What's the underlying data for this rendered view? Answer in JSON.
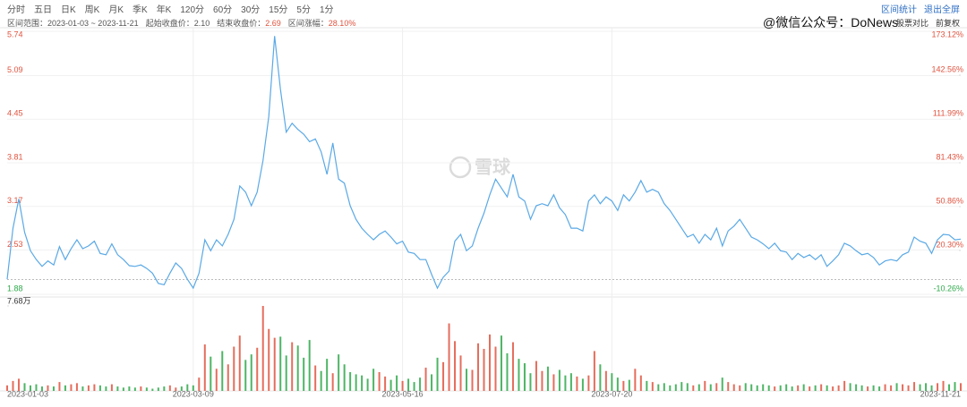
{
  "toolbar": {
    "tabs": [
      "分时",
      "五日",
      "日K",
      "周K",
      "月K",
      "季K",
      "年K",
      "120分",
      "60分",
      "30分",
      "15分",
      "5分",
      "1分"
    ],
    "actions": [
      "区间统计",
      "退出全屏"
    ]
  },
  "summary": {
    "range_label": "区间范围：",
    "range": "2023-01-03 ~ 2023-11-21",
    "start_label": "起始收盘价：",
    "start_close": "2.10",
    "end_label": "结束收盘价：",
    "end_close": "2.69",
    "change_label": "区间涨幅：",
    "change": "28.10%",
    "options": [
      "股票对比",
      "前复权"
    ]
  },
  "watermark": "@微信公众号：DoNews",
  "logo": "雪球",
  "chart_data": [
    {
      "type": "line",
      "color": "#5aa9e6",
      "up_color": "#e0533f",
      "down_color": "#2ea84a",
      "categories": [
        "2023-01-03",
        null,
        null,
        null,
        null,
        null,
        null,
        null,
        null,
        null,
        null,
        null,
        null,
        null,
        null,
        null,
        null,
        null,
        null,
        null,
        null,
        null,
        null,
        null,
        null,
        null,
        null,
        null,
        null,
        null,
        null,
        null,
        "2023-03-09",
        null,
        null,
        null,
        null,
        null,
        null,
        null,
        null,
        null,
        null,
        null,
        null,
        null,
        null,
        null,
        null,
        null,
        null,
        null,
        null,
        null,
        null,
        null,
        null,
        null,
        null,
        null,
        null,
        null,
        null,
        null,
        null,
        null,
        null,
        null,
        "2023-05-16",
        null,
        null,
        null,
        null,
        null,
        null,
        null,
        null,
        null,
        null,
        null,
        null,
        null,
        null,
        null,
        null,
        null,
        null,
        null,
        null,
        null,
        null,
        null,
        null,
        null,
        null,
        null,
        null,
        null,
        null,
        null,
        null,
        null,
        null,
        null,
        "2023-07-20",
        null,
        null,
        null,
        null,
        null,
        null,
        null,
        null,
        null,
        null,
        null,
        null,
        null,
        null,
        null,
        null,
        null,
        null,
        null,
        null,
        null,
        null,
        null,
        null,
        null,
        null,
        null,
        null,
        null,
        null,
        null,
        null,
        null,
        null,
        null,
        null,
        null,
        null,
        null,
        null,
        null,
        null,
        null,
        null,
        null,
        null,
        null,
        null,
        null,
        null,
        null,
        null,
        null,
        null,
        null,
        null,
        null,
        null,
        null,
        "2023-11-21"
      ],
      "values": [
        2.1,
        2.85,
        3.28,
        2.79,
        2.52,
        2.39,
        2.29,
        2.37,
        2.31,
        2.58,
        2.39,
        2.55,
        2.68,
        2.55,
        2.59,
        2.66,
        2.48,
        2.46,
        2.62,
        2.46,
        2.39,
        2.3,
        2.29,
        2.31,
        2.26,
        2.19,
        2.04,
        2.02,
        2.19,
        2.34,
        2.26,
        2.1,
        1.97,
        2.19,
        2.68,
        2.52,
        2.68,
        2.59,
        2.76,
        2.98,
        3.47,
        3.38,
        3.18,
        3.38,
        3.84,
        4.49,
        5.67,
        4.89,
        4.26,
        4.39,
        4.3,
        4.23,
        4.12,
        4.16,
        3.97,
        3.64,
        4.1,
        3.57,
        3.51,
        3.18,
        2.98,
        2.85,
        2.76,
        2.68,
        2.76,
        2.81,
        2.72,
        2.62,
        2.66,
        2.5,
        2.48,
        2.39,
        2.39,
        2.17,
        1.97,
        2.13,
        2.22,
        2.66,
        2.76,
        2.52,
        2.59,
        2.85,
        3.07,
        3.34,
        3.57,
        3.44,
        3.31,
        3.64,
        3.31,
        3.25,
        2.98,
        3.18,
        3.21,
        3.18,
        3.34,
        3.15,
        3.05,
        2.85,
        2.85,
        2.81,
        3.25,
        3.34,
        3.21,
        3.31,
        3.25,
        3.11,
        3.34,
        3.25,
        3.38,
        3.55,
        3.38,
        3.42,
        3.38,
        3.21,
        3.11,
        2.98,
        2.85,
        2.72,
        2.76,
        2.63,
        2.76,
        2.68,
        2.85,
        2.59,
        2.81,
        2.88,
        2.98,
        2.85,
        2.72,
        2.68,
        2.62,
        2.55,
        2.63,
        2.52,
        2.5,
        2.39,
        2.48,
        2.42,
        2.46,
        2.39,
        2.46,
        2.29,
        2.37,
        2.46,
        2.63,
        2.59,
        2.52,
        2.46,
        2.48,
        2.42,
        2.31,
        2.37,
        2.39,
        2.37,
        2.46,
        2.5,
        2.72,
        2.66,
        2.63,
        2.48,
        2.68,
        2.76,
        2.75,
        2.68,
        2.69
      ],
      "ylim": [
        1.88,
        5.74
      ],
      "yticks": [
        5.74,
        5.09,
        4.45,
        3.81,
        3.17,
        2.53,
        1.88
      ],
      "y2lim": [
        -10.26,
        173.12
      ],
      "y2ticks": [
        {
          "value": 173.12,
          "label": "173.12%"
        },
        {
          "value": 142.56,
          "label": "142.56%"
        },
        {
          "value": 111.99,
          "label": "111.99%"
        },
        {
          "value": 81.43,
          "label": "81.43%"
        },
        {
          "value": 50.86,
          "label": "50.86%"
        },
        {
          "value": 20.3,
          "label": "20.30%"
        },
        {
          "value": -10.26,
          "label": "-10.26%"
        }
      ],
      "grid": true
    },
    {
      "type": "bar",
      "values": [
        0.5,
        0.9,
        1.1,
        0.7,
        0.5,
        0.6,
        0.4,
        0.5,
        0.4,
        0.8,
        0.5,
        0.6,
        0.7,
        0.4,
        0.5,
        0.6,
        0.5,
        0.4,
        0.6,
        0.4,
        0.3,
        0.4,
        0.3,
        0.4,
        0.3,
        0.2,
        0.3,
        0.4,
        0.5,
        0.3,
        0.4,
        0.6,
        0.5,
        1.2,
        4.2,
        3.1,
        2.0,
        3.6,
        2.4,
        4.0,
        5.0,
        2.8,
        3.3,
        3.9,
        7.68,
        5.6,
        4.8,
        4.9,
        3.2,
        4.4,
        4.1,
        3.0,
        4.6,
        2.3,
        1.8,
        2.9,
        1.6,
        3.3,
        2.4,
        1.7,
        1.5,
        1.4,
        1.1,
        2.0,
        1.7,
        1.3,
        1.0,
        1.4,
        0.9,
        1.1,
        0.8,
        1.2,
        2.1,
        1.5,
        3.0,
        2.6,
        6.1,
        4.5,
        3.2,
        2.0,
        1.9,
        4.3,
        3.8,
        5.1,
        4.0,
        5.0,
        3.4,
        4.4,
        2.9,
        2.5,
        1.6,
        2.7,
        1.8,
        2.2,
        1.5,
        1.9,
        1.4,
        1.6,
        1.3,
        1.1,
        1.4,
        3.6,
        2.4,
        1.8,
        1.6,
        1.2,
        0.9,
        1.0,
        2.0,
        1.4,
        0.9,
        0.8,
        0.6,
        0.7,
        0.5,
        0.6,
        0.8,
        0.7,
        0.5,
        0.6,
        0.9,
        0.6,
        0.7,
        1.2,
        0.8,
        0.6,
        0.5,
        0.7,
        0.6,
        0.5,
        0.6,
        0.5,
        0.4,
        0.5,
        0.6,
        0.4,
        0.5,
        0.6,
        0.4,
        0.5,
        0.6,
        0.5,
        0.4,
        0.5,
        0.9,
        0.7,
        0.6,
        0.5,
        0.4,
        0.5,
        0.4,
        0.6,
        0.5,
        0.7,
        0.6,
        0.5,
        0.8,
        0.6,
        0.7,
        0.5,
        0.7,
        0.9,
        0.6,
        0.8,
        0.7
      ],
      "ylim": [
        0,
        7.68
      ],
      "yticks": [
        {
          "value": 7.68,
          "label": "7.68万"
        }
      ]
    }
  ]
}
